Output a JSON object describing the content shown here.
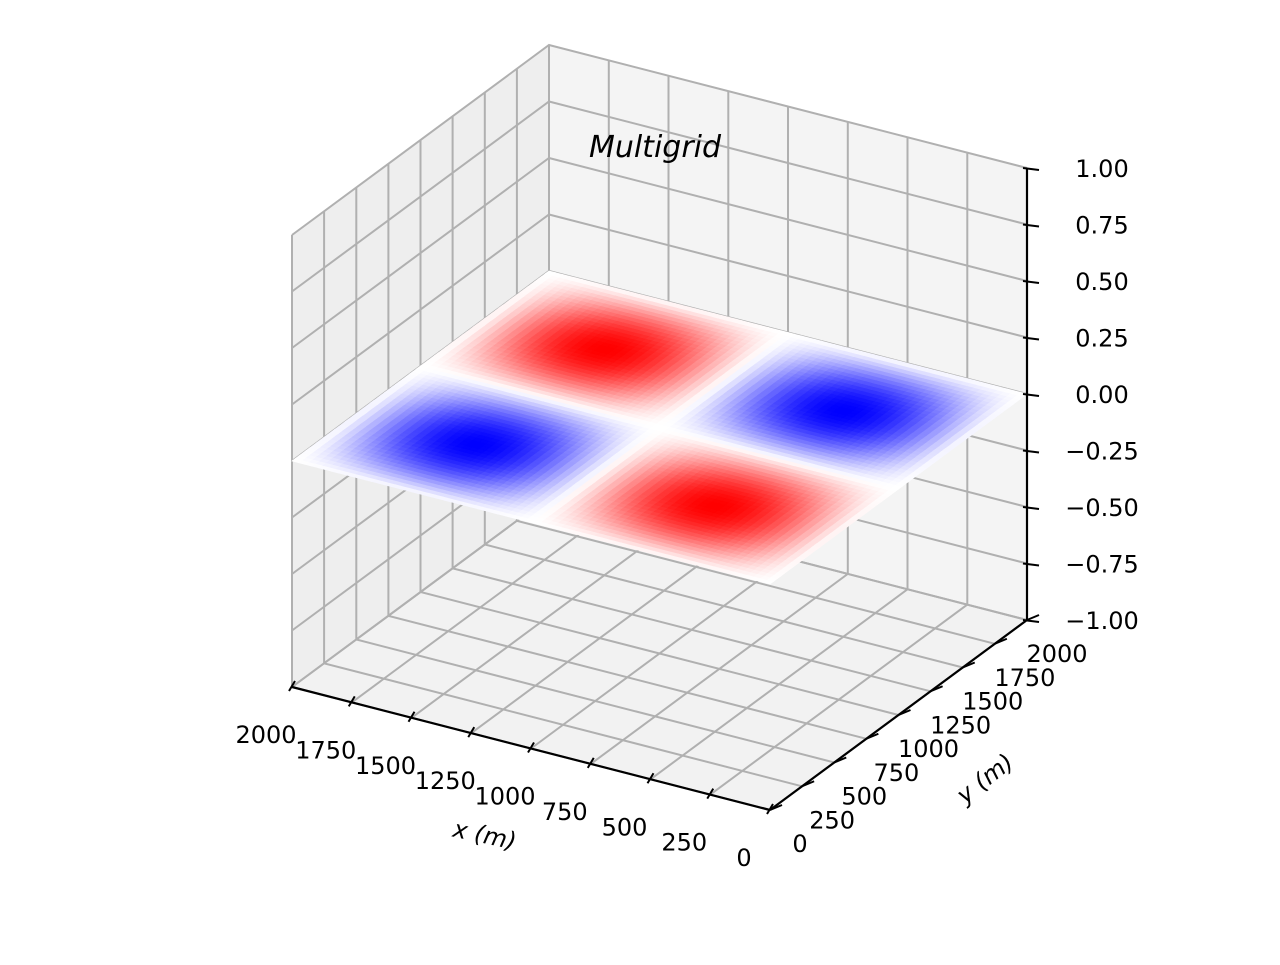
{
  "chart_data": {
    "type": "surface3d",
    "title": "Multigrid",
    "xlabel": "x (m)",
    "ylabel": "y (m)",
    "zlabel": "",
    "xlim": [
      0,
      2000
    ],
    "ylim": [
      0,
      2000
    ],
    "zlim": [
      -1,
      1
    ],
    "xticks": [
      0,
      250,
      500,
      750,
      1000,
      1250,
      1500,
      1750,
      2000
    ],
    "yticks": [
      0,
      250,
      500,
      750,
      1000,
      1250,
      1500,
      1750,
      2000
    ],
    "zticks": [
      -1,
      -0.75,
      -0.5,
      -0.25,
      0,
      0.25,
      0.5,
      0.75,
      1
    ],
    "xtick_labels": [
      "0",
      "250",
      "500",
      "750",
      "1000",
      "1250",
      "1500",
      "1750",
      "2000"
    ],
    "ytick_labels": [
      "0",
      "250",
      "500",
      "750",
      "1000",
      "1250",
      "1500",
      "1750",
      "2000"
    ],
    "ztick_labels": [
      "−1.00",
      "−0.75",
      "−0.50",
      "−0.25",
      "0.00",
      "0.25",
      "0.50",
      "0.75",
      "1.00"
    ],
    "plane_z": 0,
    "colormap": "bwr",
    "color_range": [
      -1,
      1
    ],
    "field": "sin(pi*x/1000) * sin(pi*y/1000)",
    "extrema": [
      {
        "x": 500,
        "y": 500,
        "value": 1
      },
      {
        "x": 1500,
        "y": 500,
        "value": -1
      },
      {
        "x": 500,
        "y": 1500,
        "value": -1
      },
      {
        "x": 1500,
        "y": 1500,
        "value": 1
      }
    ],
    "grid": true,
    "colors": {
      "low": "#0000ff",
      "mid": "#ffffff",
      "high": "#ff0000",
      "pane": "#f2f2f2",
      "grid": "#b0b0b0"
    }
  }
}
